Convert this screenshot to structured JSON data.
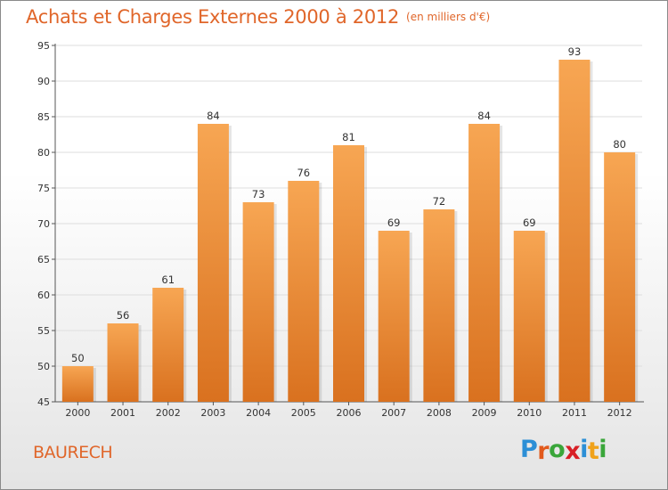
{
  "header": {
    "title": "Achats et Charges Externes 2000 à 2012",
    "subtitle": "(en milliers d'€)"
  },
  "footer": {
    "commune": "BAURECH",
    "logo": "Proxiti"
  },
  "colors": {
    "title": "#e0662a",
    "bar_top": "#f7a653",
    "bar_bottom": "#d9711f",
    "gridline": "#dedede",
    "logo_letters": [
      "#2c8fd6",
      "#e25a1c",
      "#3aa63a",
      "#d81f26",
      "#2c8fd6",
      "#f0a21b",
      "#3aa63a"
    ]
  },
  "chart_data": {
    "type": "bar",
    "title": "Achats et Charges Externes 2000 à 2012",
    "subtitle": "(en milliers d'€)",
    "categories": [
      "2000",
      "2001",
      "2002",
      "2003",
      "2004",
      "2005",
      "2006",
      "2007",
      "2008",
      "2009",
      "2010",
      "2011",
      "2012"
    ],
    "values": [
      50,
      56,
      61,
      84,
      73,
      76,
      81,
      69,
      72,
      84,
      69,
      93,
      80
    ],
    "ylim": [
      45,
      95
    ],
    "yticks": [
      45,
      50,
      55,
      60,
      65,
      70,
      75,
      80,
      85,
      90,
      95
    ],
    "xlabel": "",
    "ylabel": "",
    "grid": true,
    "data_labels": true
  }
}
